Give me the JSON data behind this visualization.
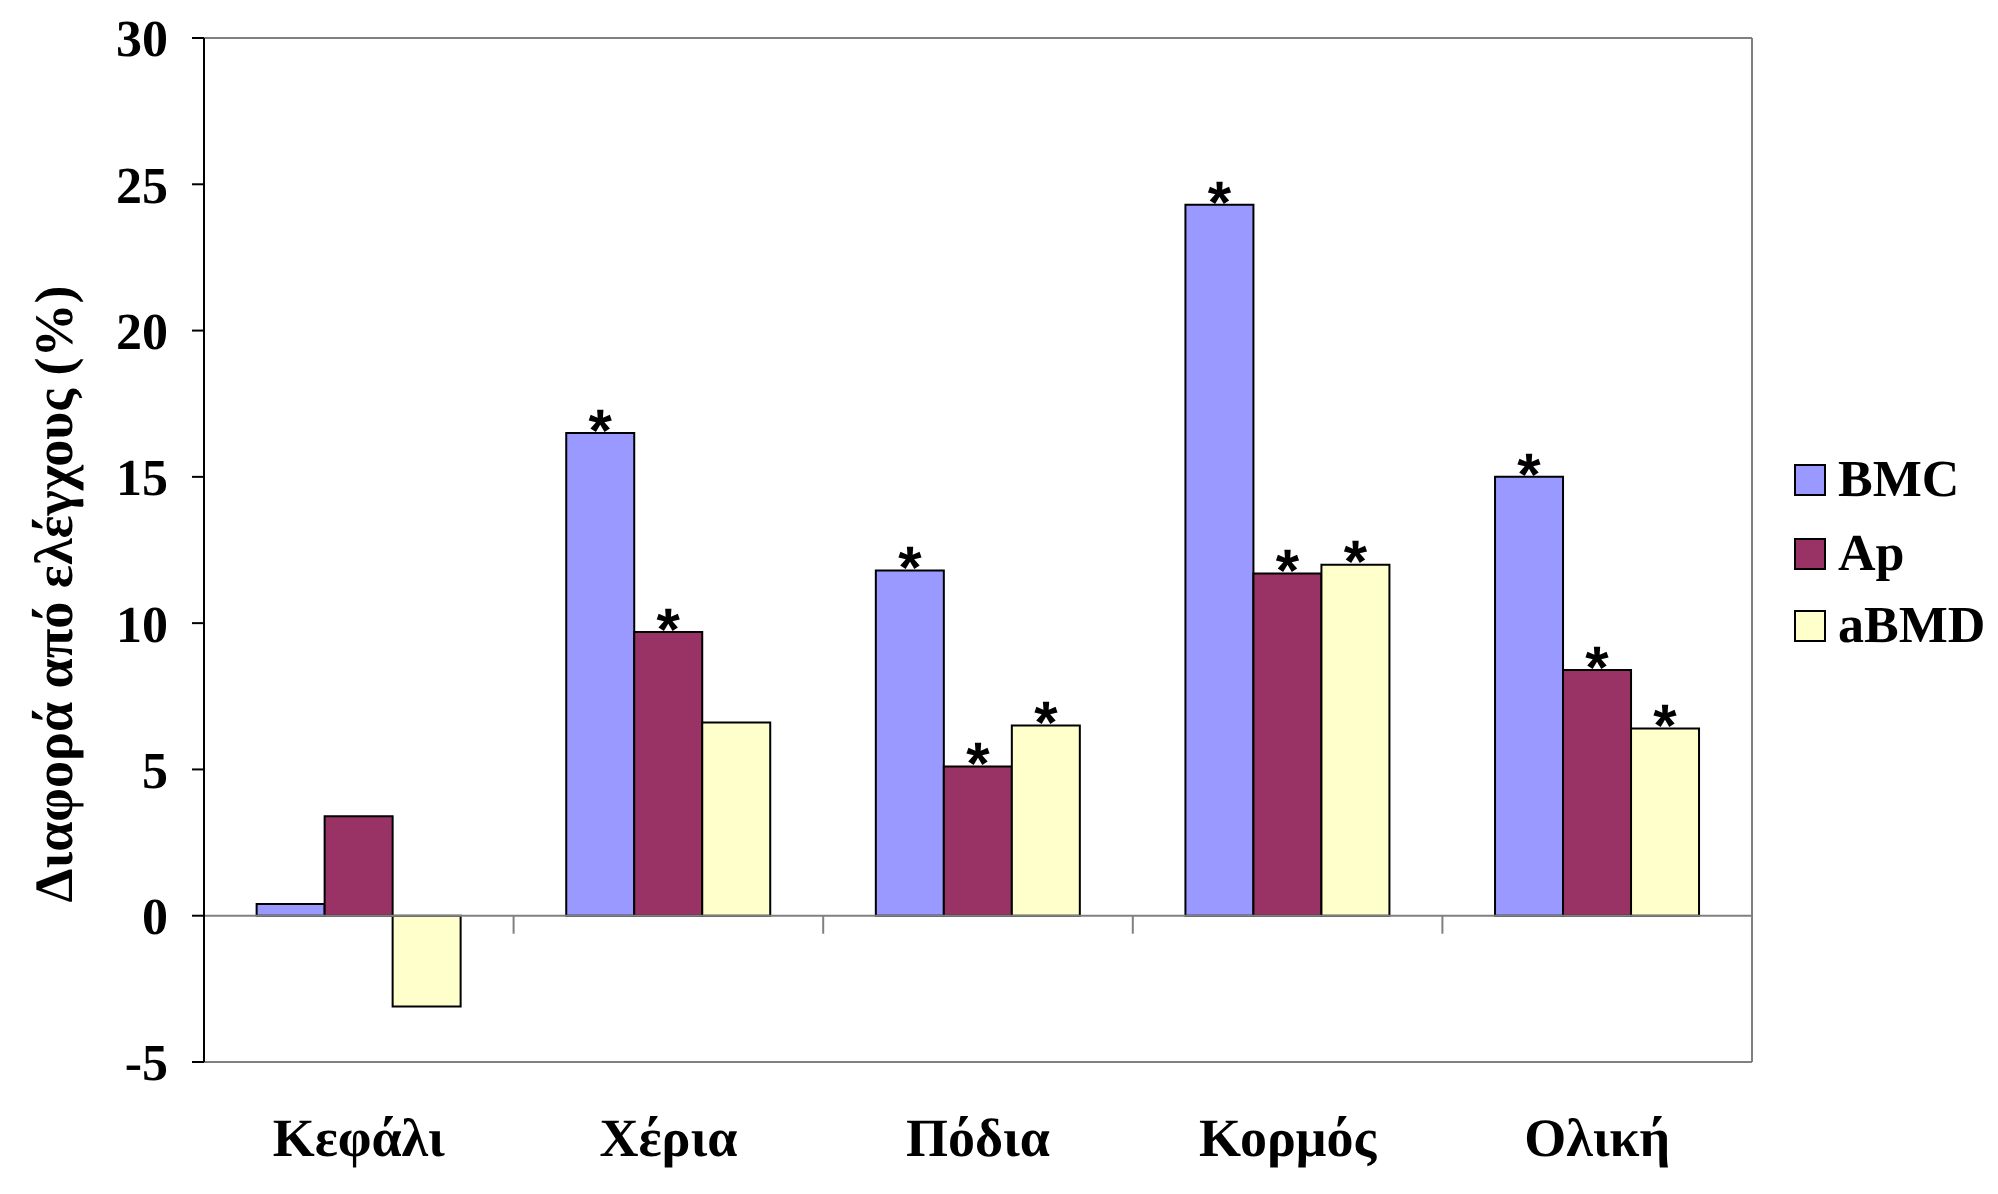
{
  "chart_data": {
    "type": "bar",
    "ylabel": "Διαφορά από ελέγχους (%)",
    "categories": [
      "Κεφάλι",
      "Χέρια",
      "Πόδια",
      "Κορμός",
      "Ολική"
    ],
    "series": [
      {
        "name": "BMC",
        "color": "#9999ff",
        "values": [
          0.4,
          16.5,
          11.8,
          24.3,
          15.0
        ],
        "value_labels": [
          null,
          "*",
          "*",
          "*",
          "*"
        ]
      },
      {
        "name": "Ap",
        "color": "#993366",
        "values": [
          3.4,
          9.7,
          5.1,
          11.7,
          8.4
        ],
        "value_labels": [
          null,
          "*",
          "*",
          "*",
          "*"
        ]
      },
      {
        "name": "aBMD",
        "color": "#ffffcc",
        "values": [
          -3.1,
          6.6,
          6.5,
          12.0,
          6.4
        ],
        "value_labels": [
          null,
          null,
          "*",
          "*",
          "*"
        ]
      }
    ],
    "ylim": [
      -5,
      30
    ],
    "yticks": [
      -5,
      0,
      5,
      10,
      15,
      20,
      25,
      30
    ],
    "legend": "right"
  }
}
